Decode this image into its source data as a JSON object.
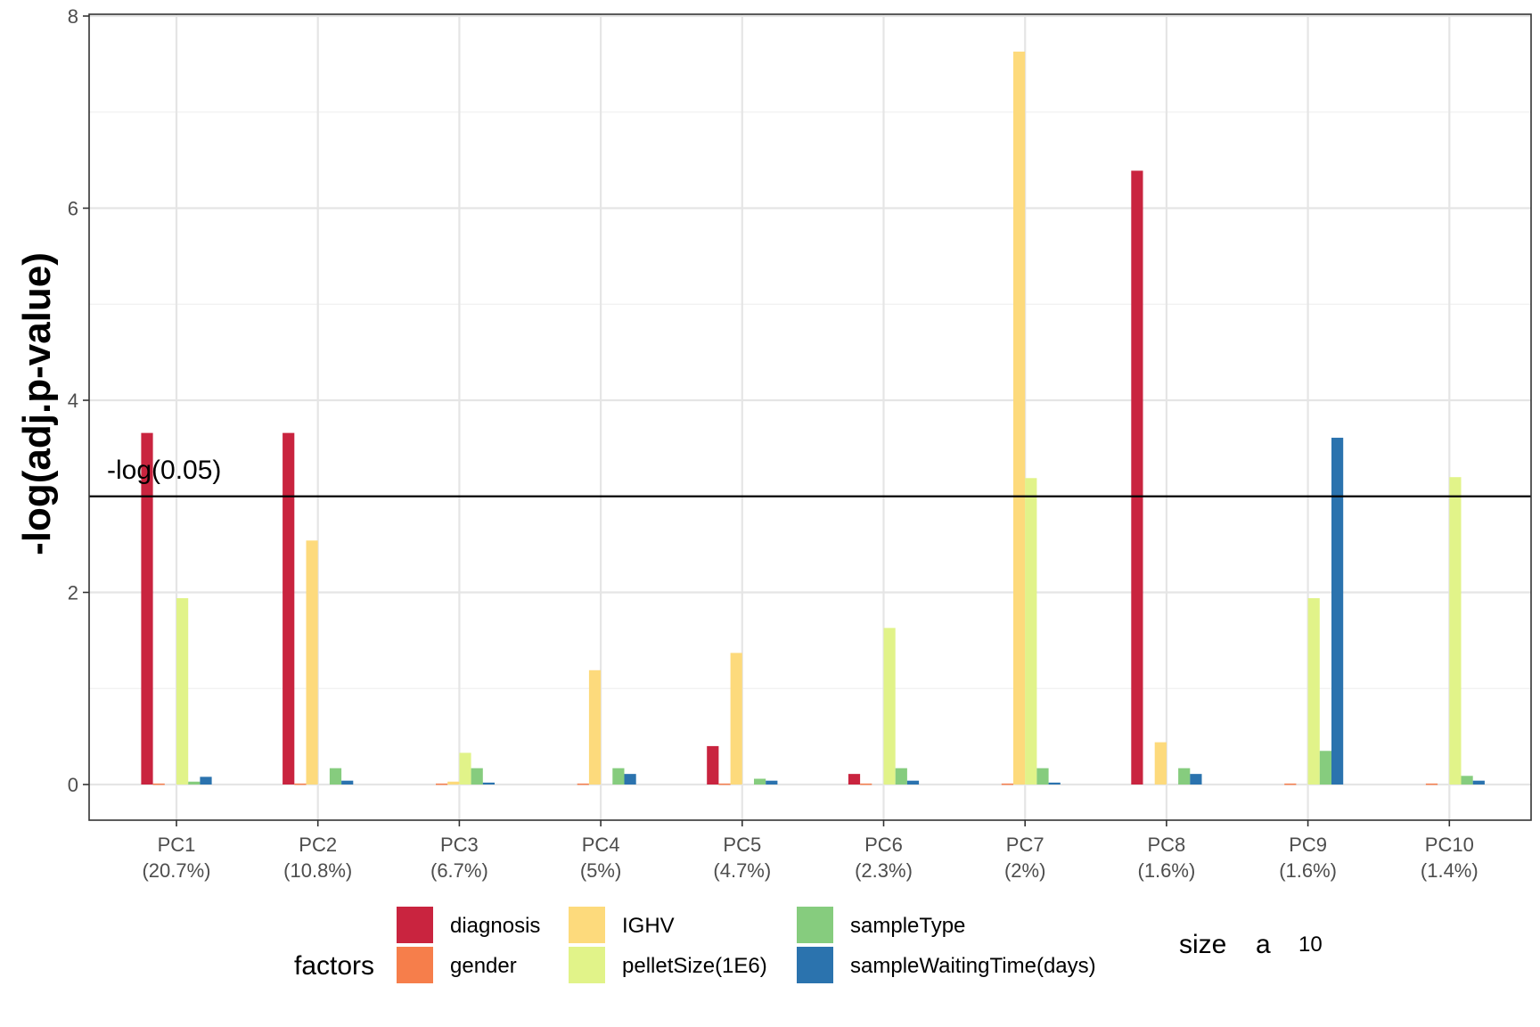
{
  "chart_data": {
    "type": "bar",
    "title": "",
    "xlabel": "",
    "ylabel": "-log(adj.p-value)",
    "ylim": [
      0,
      8
    ],
    "yticks": [
      0,
      2,
      4,
      6,
      8
    ],
    "grid": true,
    "categories": [
      "PC1\n(20.7%)",
      "PC2\n(10.8%)",
      "PC3\n(6.7%)",
      "PC4\n(5%)",
      "PC5\n(4.7%)",
      "PC6\n(2.3%)",
      "PC7\n(2%)",
      "PC8\n(1.6%)",
      "PC9\n(1.6%)",
      "PC10\n(1.4%)"
    ],
    "category_lines": [
      [
        "PC1",
        "(20.7%)"
      ],
      [
        "PC2",
        "(10.8%)"
      ],
      [
        "PC3",
        "(6.7%)"
      ],
      [
        "PC4",
        "(5%)"
      ],
      [
        "PC5",
        "(4.7%)"
      ],
      [
        "PC6",
        "(2.3%)"
      ],
      [
        "PC7",
        "(2%)"
      ],
      [
        "PC8",
        "(1.6%)"
      ],
      [
        "PC9",
        "(1.6%)"
      ],
      [
        "PC10",
        "(1.4%)"
      ]
    ],
    "series": [
      {
        "name": "diagnosis",
        "color": "#C9243F",
        "values": [
          3.66,
          3.66,
          0,
          0,
          0.4,
          0.11,
          0,
          6.39,
          0,
          0
        ]
      },
      {
        "name": "gender",
        "color": "#F67E4B",
        "values": [
          0.01,
          0.01,
          0.01,
          0.01,
          0.01,
          0.01,
          0.01,
          0,
          0.01,
          0.01
        ]
      },
      {
        "name": "IGHV",
        "color": "#FDDA7C",
        "values": [
          0,
          2.54,
          0.03,
          1.19,
          1.37,
          0,
          7.63,
          0.44,
          0,
          0
        ]
      },
      {
        "name": "pelletSize(1E6)",
        "color": "#E1F389",
        "values": [
          1.94,
          0,
          0.33,
          0,
          0,
          1.63,
          3.19,
          0,
          1.94,
          3.2
        ]
      },
      {
        "name": "sampleType",
        "color": "#86CC7E",
        "values": [
          0.03,
          0.17,
          0.17,
          0.17,
          0.06,
          0.17,
          0.17,
          0.17,
          0.35,
          0.09
        ]
      },
      {
        "name": "sampleWaitingTime(days)",
        "color": "#2B73AE",
        "values": [
          0.08,
          0.04,
          0.02,
          0.11,
          0.04,
          0.04,
          0.02,
          0.11,
          3.61,
          0.04
        ]
      }
    ],
    "hline": {
      "y": 3,
      "label": "-log(0.05)"
    },
    "legend": {
      "placement": "bottom",
      "title": "factors",
      "size_title": "size",
      "size_key": "a",
      "size_value": "10"
    }
  }
}
